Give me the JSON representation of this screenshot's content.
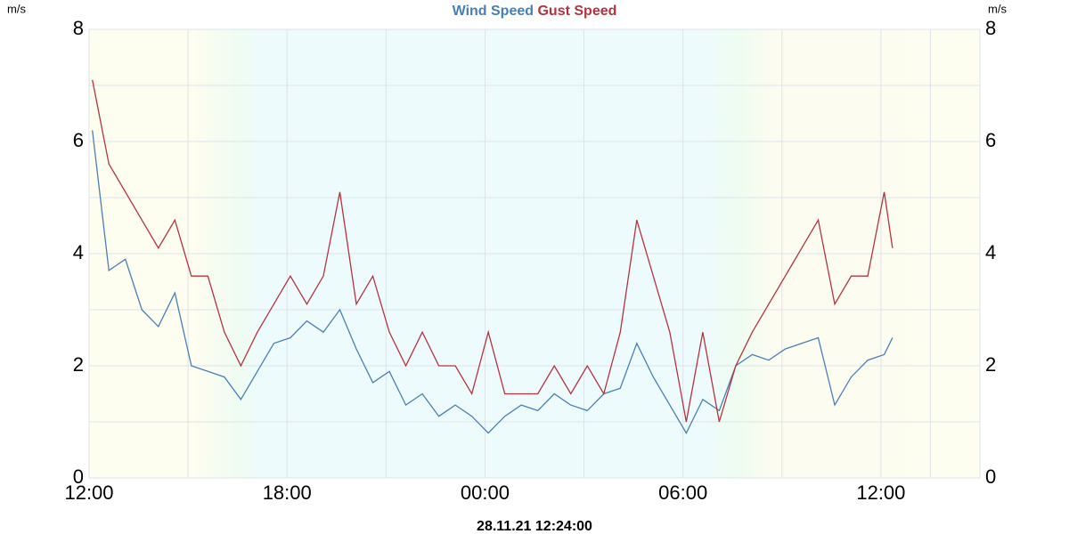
{
  "chart_data": {
    "type": "line",
    "ylabel": "m/s",
    "y2label": "m/s",
    "timestamp": "28.11.21 12:24:00",
    "x": [
      0.1,
      0.6,
      1.1,
      1.6,
      2.1,
      2.6,
      3.1,
      3.6,
      4.1,
      4.6,
      5.1,
      5.6,
      6.1,
      6.6,
      7.1,
      7.6,
      8.1,
      8.6,
      9.1,
      9.6,
      10.1,
      10.6,
      11.1,
      11.6,
      12.1,
      12.6,
      13.1,
      13.6,
      14.1,
      14.6,
      15.1,
      15.6,
      16.1,
      16.6,
      17.1,
      17.6,
      18.1,
      18.6,
      19.1,
      19.6,
      20.1,
      20.6,
      21.1,
      21.6,
      22.1,
      22.6,
      23.1,
      23.6,
      24.1,
      24.35
    ],
    "series": [
      {
        "name": "Wind Speed",
        "color": "#4a7fb5",
        "values": [
          6.2,
          3.7,
          3.9,
          3.0,
          2.7,
          3.3,
          2.0,
          1.9,
          1.8,
          1.4,
          1.9,
          2.4,
          2.5,
          2.8,
          2.6,
          3.0,
          2.3,
          1.7,
          1.9,
          1.3,
          1.5,
          1.1,
          1.3,
          1.1,
          0.8,
          1.1,
          1.3,
          1.2,
          1.5,
          1.3,
          1.2,
          1.5,
          1.6,
          2.4,
          1.8,
          1.3,
          0.8,
          1.4,
          1.2,
          2.0,
          2.2,
          2.1,
          2.3,
          2.4,
          2.5,
          1.3,
          1.8,
          2.1,
          2.2,
          2.5
        ]
      },
      {
        "name": "Gust Speed",
        "color": "#b5333f",
        "values": [
          7.1,
          5.6,
          5.1,
          4.6,
          4.1,
          4.6,
          3.6,
          3.6,
          2.6,
          2.0,
          2.6,
          3.1,
          3.6,
          3.1,
          3.6,
          5.1,
          3.1,
          3.6,
          2.6,
          2.0,
          2.6,
          2.0,
          2.0,
          1.5,
          2.6,
          1.5,
          1.5,
          1.5,
          2.0,
          1.5,
          2.0,
          1.5,
          2.6,
          4.6,
          3.6,
          2.6,
          1.0,
          2.6,
          1.0,
          2.0,
          2.6,
          3.1,
          3.6,
          4.1,
          4.6,
          3.1,
          3.6,
          3.6,
          5.1,
          4.1
        ]
      }
    ],
    "xlim": [
      0,
      27
    ],
    "xticks": [
      {
        "value": 0,
        "label": "12:00"
      },
      {
        "value": 6,
        "label": "18:00"
      },
      {
        "value": 12,
        "label": "00:00"
      },
      {
        "value": 18,
        "label": "06:00"
      },
      {
        "value": 24,
        "label": "12:00"
      }
    ],
    "ylim": [
      0,
      8
    ],
    "yticks": [
      0,
      2,
      4,
      6,
      8
    ],
    "y2lim": [
      0,
      8
    ],
    "y2ticks": [
      0,
      2,
      4,
      6,
      8
    ],
    "grid": true
  }
}
